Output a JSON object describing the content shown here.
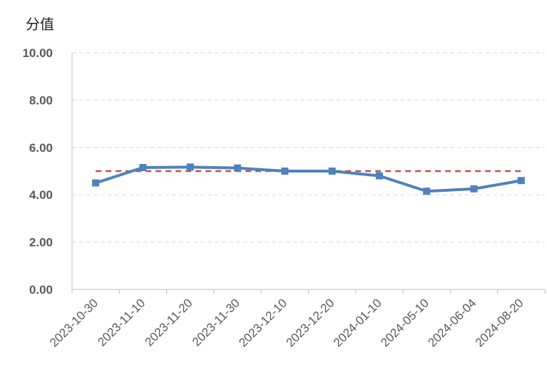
{
  "chart_data": {
    "type": "line",
    "title": "",
    "xlabel": "",
    "ylabel": "分值",
    "categories": [
      "2023-10-30",
      "2023-11-10",
      "2023-11-20",
      "2023-11-30",
      "2023-12-10",
      "2023-12-20",
      "2024-01-10",
      "2024-05-10",
      "2024-06-04",
      "2024-08-20"
    ],
    "yticks": [
      "0.00",
      "2.00",
      "4.00",
      "6.00",
      "8.00",
      "10.00"
    ],
    "ylim": [
      0,
      10
    ],
    "grid": true,
    "series": [
      {
        "values": [
          4.5,
          5.15,
          5.17,
          5.13,
          5.0,
          5.0,
          4.8,
          4.15,
          4.25,
          4.6
        ],
        "color": "#4F81BD",
        "marker": "square"
      },
      {
        "values": [
          5.0,
          5.0,
          5.0,
          5.0,
          5.0,
          5.0,
          5.0,
          5.0,
          5.0,
          5.0
        ],
        "color": "#C0504D",
        "style": "dashed"
      }
    ]
  }
}
